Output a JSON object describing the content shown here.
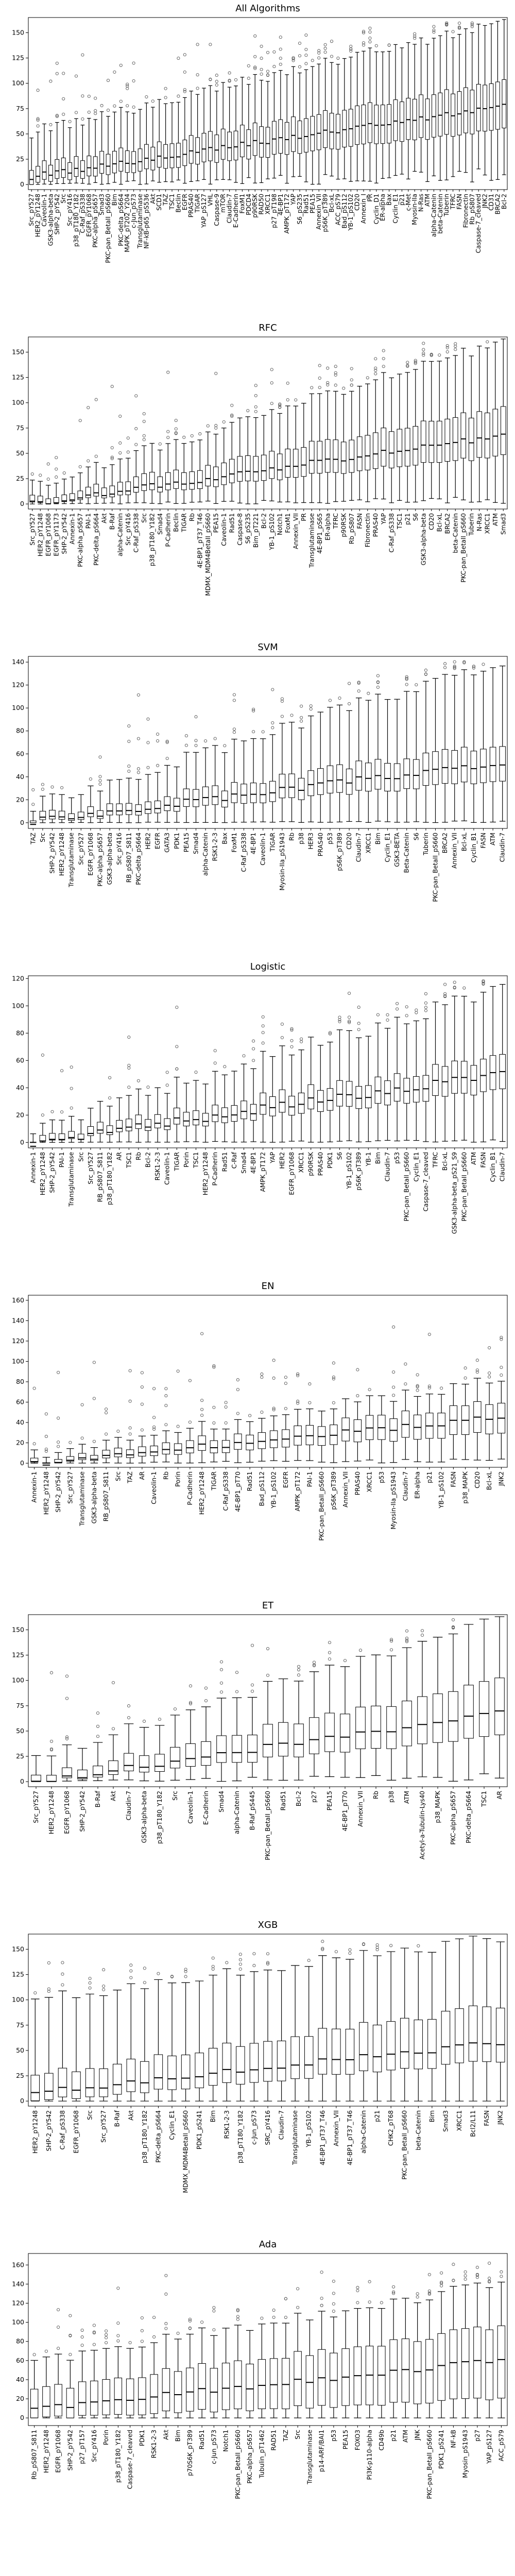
{
  "chart_data": [
    {
      "type": "box",
      "title": "All Algorithms",
      "ylim": [
        -5,
        165
      ],
      "yticks": [
        0,
        25,
        50,
        75,
        100,
        125,
        150
      ],
      "categories": [
        "Src_pY527",
        "HER2_pY1248",
        "Caveolin-1",
        "GSK3-alpha-beta",
        "SHP-2_pY542",
        "Src",
        "Src_pY416",
        "p38_pT180_Y182",
        "C-Raf_pS338",
        "EGFR_pY1068",
        "PKC-alpha_pS657",
        "Smad3",
        "PKC-pan_BetaII_pS660",
        "Bim",
        "PKC-delta_pS664",
        "MAPK_pT202_Y204",
        "c-Jun_pS73",
        "Transglutaminase",
        "NF-kB-p65_pS536",
        "Akt",
        "SCD1",
        "TAZ",
        "TSC1",
        "Beclin",
        "EGFR",
        "PRAS40",
        "TIGAR",
        "YAP_pS127",
        "VHL",
        "Caspase-9",
        "mTOR",
        "Claudin-7",
        "E-Cadherin",
        "FoxM1",
        "PDCD4",
        "p90RSK",
        "RAD50",
        "XRCC1",
        "p27_pT198",
        "4E-BP1",
        "AMPK_pT172",
        "YAP",
        "S6_pS235",
        "Rad51",
        "PEA15",
        "Annexin_VII",
        "pS6K_pT389",
        "Bcl-xL",
        "ACC_pS79",
        "Bad_pS112",
        "YB-1_pS102",
        "CD20",
        "Annexin_I",
        "PR",
        "Cyclin_D1",
        "ER-alpha",
        "Bax",
        "Cyclin_E1",
        "p21",
        "c-Met",
        "Myosin-IIa",
        "N-Ras",
        "ATM",
        "alpha-Catenin",
        "beta-Catenin",
        "Tuberin",
        "TFRC",
        "FASN",
        "Fibronectin",
        "Rb_pS807",
        "Caspase-7_cleaved",
        "JNK2",
        "CD31",
        "BRCA2",
        "Bcl-2"
      ],
      "fallback_tick_interval": 2,
      "stats": {
        "base_median": 8,
        "end_median": 78,
        "base_q1": 2,
        "end_q1": 55,
        "base_q3": 18,
        "end_q3": 102,
        "base_upper": 52,
        "end_upper": 162,
        "low_min": 0,
        "high_min": 18
      }
    },
    {
      "type": "box",
      "title": "RFC",
      "ylim": [
        -5,
        165
      ],
      "yticks": [
        0,
        25,
        50,
        75,
        100,
        125,
        150
      ],
      "categories": [
        "Src_pY527",
        "HER2_pY1248",
        "EGFR_pY1068",
        "EGFR_pY1173",
        "SHP-2_pY542",
        "Annexin-1",
        "PKC-alpha_pS657",
        "PAI-1",
        "PKC-delta_pS664",
        "Akt",
        "B-Raf",
        "alpha-Catenin",
        "Src_pY416",
        "C-Raf_pS338",
        "Src",
        "p38_pT180_Y182",
        "Smad4",
        "P-Cadherin",
        "Beclin",
        "TIGAR",
        "Rb",
        "4E-BP1_pT37_T46",
        "MDMX_MDM4BetaII_pS660",
        "PEA15",
        "Caveolin-1",
        "Rad51",
        "Caspase-8",
        "S6_pS235",
        "Bim_pT221",
        "Bcl-2",
        "YB-1_pS102",
        "Notch1",
        "FoxM1",
        "Annexin_VII",
        "PR",
        "Transglutaminase",
        "4E-BP1_pS65",
        "ER-alpha",
        "TFRC",
        "p90RSK",
        "Rb_pS807",
        "FASN",
        "Fibronectin",
        "PRAS40",
        "YAP",
        "C-Raf_pS338",
        "TSC1",
        "p21",
        "S6",
        "GSK3-alpha-beta",
        "CD20",
        "Bcl-xL",
        "BRCA2",
        "beta-Catenin",
        "PKC-pan_BetaII_pS660",
        "Tuberin",
        "N-Ras",
        "XRCC1",
        "ATM",
        "Smad3"
      ],
      "fallback_tick_interval": 2,
      "stats": {
        "base_median": 0,
        "end_median": 68,
        "base_q1": 0,
        "end_q1": 48,
        "base_q3": 5,
        "end_q3": 95,
        "base_upper": 18,
        "end_upper": 162,
        "low_min": 0,
        "high_min": 8
      }
    },
    {
      "type": "box",
      "title": "SVM",
      "ylim": [
        -5,
        145
      ],
      "yticks": [
        0,
        20,
        40,
        60,
        80,
        100,
        120,
        140
      ],
      "categories": [
        "TAZ",
        "Src",
        "SHP-2_pY542",
        "HER2_pY1248",
        "Transglutaminase",
        "Src_pY527",
        "EGFR_pY1068",
        "PKC-alpha_pS657",
        "GSK3-alpha-beta",
        "Src_pY416",
        "RB_pS807_S811",
        "PKC-delta_pS664",
        "HER2",
        "EGFR",
        "GATA3",
        "PDK1",
        "PEA15",
        "Smad4",
        "alpha-Catenin",
        "RSK1-2-3",
        "Bax",
        "FoxM1",
        "C-Raf_pS338",
        "4E-BP1",
        "Caveolin-1",
        "TIGAR",
        "Myosin-IIa_pS1943",
        "Rb",
        "p38",
        "HER3",
        "PRAS40",
        "p53",
        "pS6K_pT389",
        "CD20",
        "Claudin-7",
        "XRCC1",
        "Bim",
        "Cyclin_E1",
        "GSK3-BETA",
        "Beta-Catenin",
        "S6",
        "Tuberin",
        "PKC-pan_BetaII_pS660",
        "BRCA2",
        "Annexin_VII",
        "Bcl-xL",
        "Cyclin_B1",
        "FASN",
        "ATM",
        "Claudin-7"
      ],
      "fallback_tick_interval": 2,
      "stats": {
        "base_median": 1,
        "end_median": 53,
        "base_q1": 0,
        "end_q1": 38,
        "base_q3": 5,
        "end_q3": 70,
        "base_upper": 15,
        "end_upper": 142,
        "low_min": 0,
        "high_min": 2
      }
    },
    {
      "type": "box",
      "title": "Logistic",
      "ylim": [
        -4,
        122
      ],
      "yticks": [
        0,
        20,
        40,
        60,
        80,
        100,
        120
      ],
      "categories": [
        "Annexin-1",
        "HER2_pY1248",
        "SHP-2_pY542",
        "PAI-1",
        "Transglutaminase",
        "Src",
        "Src_pY527",
        "RB_pS807_S811",
        "p38_pT180_Y182",
        "AR",
        "TSC1",
        "Rb",
        "Bcl-2",
        "RSK1-2-3",
        "Caveolin-1",
        "TIGAR",
        "Porin",
        "TSC1",
        "HER2_pY1248",
        "P-Cadherin",
        "Rad51",
        "C-Raf",
        "Smad4",
        "4E-BP1",
        "AMPK_pT172",
        "YAP",
        "HER2",
        "EGFR_pY1068",
        "XRCC1",
        "p90RSK",
        "PRAS40",
        "PDK1",
        "S6",
        "YB-1_pS102",
        "pS6K_pT389",
        "YB-1",
        "Bim",
        "Claudin-7",
        "p53",
        "PKC-pan_BetaII_pS660",
        "Cyclin_E1",
        "Caspase-7_cleaved",
        "TFRC",
        "Bcl-xL",
        "GSK3-alpha-beta_pS21_S9",
        "PKC-pan_BetaII_pS660",
        "ATM",
        "FASN",
        "Cyclin_B1",
        "Claudin-7"
      ],
      "fallback_tick_interval": 2,
      "stats": {
        "base_median": 0,
        "end_median": 50,
        "base_q1": 0,
        "end_q1": 38,
        "base_q3": 4,
        "end_q3": 62,
        "base_upper": 12,
        "end_upper": 112,
        "low_min": 0,
        "high_min": 2
      }
    },
    {
      "type": "box",
      "title": "EN",
      "ylim": [
        -4,
        165
      ],
      "yticks": [
        0,
        20,
        40,
        60,
        80,
        100,
        120,
        140,
        160
      ],
      "categories": [
        "Annexin-1",
        "HER2_pY1248",
        "SHP-2_pY542",
        "Src_pY527",
        "Transglutaminase",
        "GSK3-alpha-beta",
        "RB_pS807_S811",
        "Src",
        "TAZ",
        "AR",
        "Caveolin-1",
        "Rb",
        "Porin",
        "P-Cadherin",
        "HER2_pY1248",
        "TIGAR",
        "C-Raf_pS338",
        "4E-BP1_pT70",
        "Rad51",
        "Bad_pS112",
        "YB-1_pS102",
        "EGFR",
        "AMPK_pT172",
        "PAI-1",
        "PKC-pan_BetaII_pS660",
        "pS6K_pT389",
        "Annexin_VII",
        "PRAS40",
        "XRCC1",
        "p53",
        "Myosin-IIa_pS1943",
        "Claudin-7",
        "ER-alpha",
        "p21",
        "YB-1_pS102",
        "FASN",
        "p38_MAPK",
        "CD20",
        "Bcl-xL",
        "JNK2"
      ],
      "fallback_tick_interval": 2,
      "stats": {
        "base_median": 0,
        "end_median": 45,
        "base_q1": 0,
        "end_q1": 30,
        "base_q3": 3,
        "end_q3": 60,
        "base_upper": 10,
        "end_upper": 82,
        "low_min": 0,
        "high_min": 5
      }
    },
    {
      "type": "box",
      "title": "ET",
      "ylim": [
        -5,
        165
      ],
      "yticks": [
        0,
        25,
        50,
        75,
        100,
        125,
        150
      ],
      "categories": [
        "Src_pY527",
        "HER2_pY1248",
        "EGFR_pY1068",
        "SHP-2_pY542",
        "B-Raf",
        "Akt",
        "Claudin-7",
        "GSK3-alpha-beta",
        "p38_pT180_Y182",
        "Src",
        "Caveolin-1",
        "E-Cadherin",
        "Smad4",
        "alpha-Catenin",
        "B-Raf_pS445",
        "PKC-pan_BetaII_pS660",
        "Rad51",
        "Bcl-2",
        "p27",
        "PEA15",
        "4E-BP1_pT70",
        "Annexin_VII",
        "Rb",
        "p38",
        "ATM",
        "Acetyl-a-Tubulin-Lys40",
        "p38_MAPK",
        "PKC-alpha_pS657",
        "PKC-delta_pS664",
        "TSC1",
        "AR"
      ],
      "fallback_tick_interval": 2,
      "stats": {
        "base_median": 0,
        "end_median": 68,
        "base_q1": 0,
        "end_q1": 45,
        "base_q3": 6,
        "end_q3": 100,
        "base_upper": 25,
        "end_upper": 162,
        "low_min": 0,
        "high_min": 10
      }
    },
    {
      "type": "box",
      "title": "XGB",
      "ylim": [
        -5,
        165
      ],
      "yticks": [
        0,
        25,
        50,
        75,
        100,
        125,
        150
      ],
      "categories": [
        "HER2_pY1248",
        "SHP-2_pY542",
        "C-Raf_pS338",
        "EGFR_pY1068",
        "Src",
        "Src_pY527",
        "B-Raf",
        "Akt",
        "p38_pT180_Y182",
        "PKC-delta_pS664",
        "Cyclin_E1",
        "MDMX_MDM4BetaII_pS660",
        "PDK1_pS241",
        "Bim",
        "RSK1-2-3",
        "p38_pT180_Y182",
        "c-Jun_pS73",
        "SRC_pY416",
        "Claudin-7",
        "Transglutaminase",
        "YB-1_pS102",
        "4E-BP1_pT37_T46",
        "Annexin_VII",
        "4E-BP1_pT37_T46",
        "alpha-Catenin",
        "p21",
        "CHK2_pT68",
        "PKC-pan_BetaII_pS660",
        "beta-Catenin",
        "Bim",
        "Smad3",
        "XRCC1",
        "Bcl2/L11",
        "FASN",
        "JNK2"
      ],
      "fallback_tick_interval": 2,
      "stats": {
        "base_median": 8,
        "end_median": 58,
        "base_q1": 0,
        "end_q1": 40,
        "base_q3": 25,
        "end_q3": 95,
        "base_upper": 100,
        "end_upper": 162,
        "low_min": 0,
        "high_min": 0
      }
    },
    {
      "type": "box",
      "title": "Ada",
      "ylim": [
        -8,
        172
      ],
      "yticks": [
        0,
        20,
        40,
        60,
        80,
        100,
        120,
        140,
        160
      ],
      "categories": [
        "Rb_pS807_S811",
        "HER2_pY1248",
        "EGFR_pY1068",
        "SHP-2_pY542",
        "p27_pT157",
        "Src_pY416",
        "Porin",
        "p38_pT180_Y182",
        "Caspase-7_cleaved",
        "PDK1",
        "RSK1-2-3",
        "Akt",
        "Bim",
        "p70S6K_pT389",
        "Rad51",
        "c-Jun_pS73",
        "Notch1",
        "PKC-pan_BetaII_pS660",
        "PKC-alpha_pS657",
        "Tubulin_pT1462",
        "RAD51",
        "TAZ",
        "Src",
        "Transglutaminase",
        "p14-ARF/BAI1",
        "p53",
        "PEA15",
        "FOXO3",
        "PI3K-p110-alpha",
        "CD49b",
        "p21",
        "ATM",
        "JNK",
        "PKC-pan_BetaII_pS660",
        "PDK1_pS241",
        "NF-kB",
        "Myosin_pS1943",
        "p27",
        "YAP_pS127",
        "ACC_pS79"
      ],
      "fallback_tick_interval": 2,
      "stats": {
        "base_median": 10,
        "end_median": 60,
        "base_q1": 0,
        "end_q1": 20,
        "base_q3": 30,
        "end_q3": 95,
        "base_upper": 60,
        "end_upper": 140,
        "low_min": 0,
        "high_min": 0
      }
    }
  ]
}
